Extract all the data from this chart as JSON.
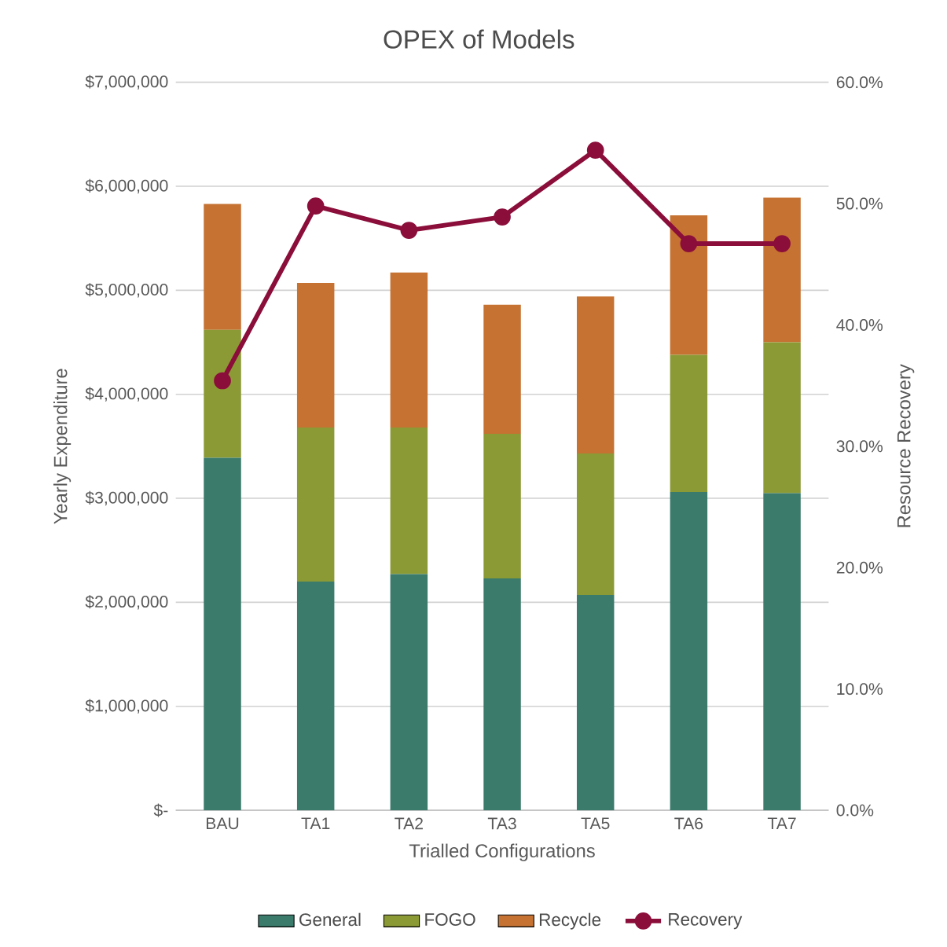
{
  "chart_data": {
    "type": "bar",
    "title": "OPEX of Models",
    "xlabel": "Trialled Configurations",
    "ylabel": "Yearly Expenditure",
    "y2label": "Resource Recovery",
    "categories": [
      "BAU",
      "TA1",
      "TA2",
      "TA3",
      "TA5",
      "TA6",
      "TA7"
    ],
    "stacked": true,
    "series": [
      {
        "name": "General",
        "color": "#3a7b6b",
        "values": [
          3390000,
          2200000,
          2270000,
          2230000,
          2070000,
          3060000,
          3050000
        ]
      },
      {
        "name": "FOGO",
        "color": "#8c9a35",
        "values": [
          1230000,
          1480000,
          1410000,
          1390000,
          1360000,
          1320000,
          1450000
        ]
      },
      {
        "name": "Recycle",
        "color": "#c57232",
        "values": [
          1210000,
          1390000,
          1490000,
          1240000,
          1510000,
          1340000,
          1390000
        ]
      },
      {
        "name": "Recovery",
        "type": "line",
        "axis": "y2",
        "color": "#8b0e3a",
        "marker": "circle",
        "values": [
          35.4,
          49.8,
          47.8,
          48.9,
          54.4,
          46.7,
          46.7
        ]
      }
    ],
    "ylim": [
      0,
      7000000
    ],
    "yticks": [
      {
        "value": 0,
        "label": "$-"
      },
      {
        "value": 1000000,
        "label": "$1,000,000"
      },
      {
        "value": 2000000,
        "label": "$2,000,000"
      },
      {
        "value": 3000000,
        "label": "$3,000,000"
      },
      {
        "value": 4000000,
        "label": "$4,000,000"
      },
      {
        "value": 5000000,
        "label": "$5,000,000"
      },
      {
        "value": 6000000,
        "label": "$6,000,000"
      },
      {
        "value": 7000000,
        "label": "$7,000,000"
      }
    ],
    "y2lim": [
      0,
      60
    ],
    "y2ticks": [
      {
        "value": 0,
        "label": "0.0%"
      },
      {
        "value": 10,
        "label": "10.0%"
      },
      {
        "value": 20,
        "label": "20.0%"
      },
      {
        "value": 30,
        "label": "30.0%"
      },
      {
        "value": 40,
        "label": "40.0%"
      },
      {
        "value": 50,
        "label": "50.0%"
      },
      {
        "value": 60,
        "label": "60.0%"
      }
    ],
    "grid": "y",
    "legend": "bottom"
  }
}
